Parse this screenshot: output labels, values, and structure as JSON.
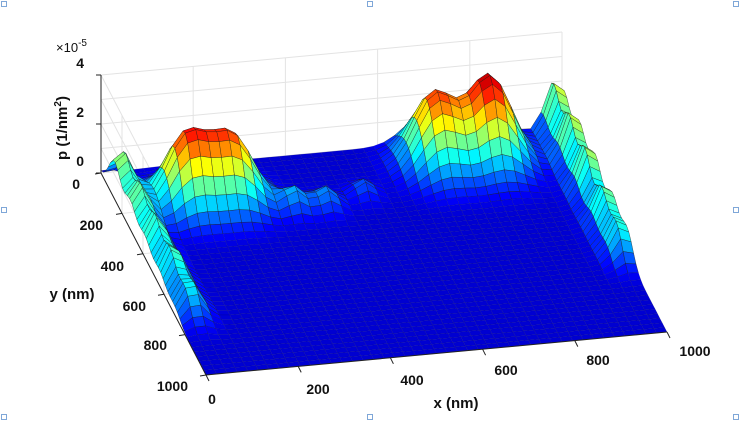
{
  "chart_data": {
    "type": "surface",
    "xlabel": "x (nm)",
    "ylabel": "y (nm)",
    "zlabel": "p (1/nm",
    "zlabel_sup": "2",
    "zlabel_close": ")",
    "z_exponent_base": "×10",
    "z_exponent_power": "-5",
    "xlim": [
      0,
      1000
    ],
    "ylim": [
      0,
      1000
    ],
    "zlim": [
      0,
      4e-05
    ],
    "x_ticks": [
      "0",
      "200",
      "400",
      "600",
      "800",
      "1000"
    ],
    "y_ticks": [
      "0",
      "200",
      "400",
      "600",
      "800",
      "1000"
    ],
    "z_ticks": [
      "0",
      "2",
      "4"
    ],
    "colormap": "jet",
    "grid": true,
    "peaks": [
      {
        "x": 200,
        "y": 250,
        "height": 3.3e-05,
        "desc": "large double-hump left"
      },
      {
        "x": 780,
        "y": 250,
        "height": 3.5e-05,
        "desc": "large double-hump right"
      },
      {
        "x": 20,
        "y": 500,
        "height": 2e-05,
        "desc": "left edge ridge"
      },
      {
        "x": 990,
        "y": 450,
        "height": 2.2e-05,
        "desc": "right edge ridge"
      },
      {
        "x": 440,
        "y": 310,
        "height": 8e-06,
        "desc": "small central bumps"
      }
    ]
  }
}
